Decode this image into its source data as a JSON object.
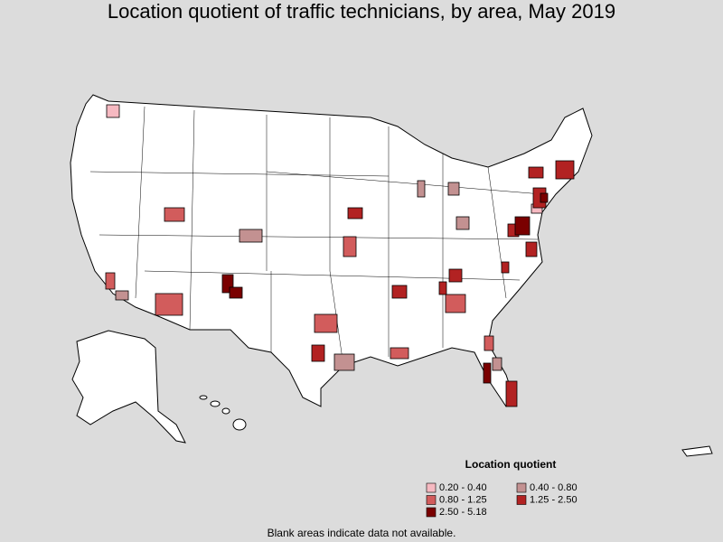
{
  "title": "Location quotient of traffic technicians, by area, May 2019",
  "legend": {
    "title": "Location quotient",
    "items": [
      {
        "label": "0.20 - 0.40",
        "color": "#f6b9c1"
      },
      {
        "label": "0.40 - 0.80",
        "color": "#c39191"
      },
      {
        "label": "0.80 - 1.25",
        "color": "#d25c5c"
      },
      {
        "label": "1.25 - 2.50",
        "color": "#b22222"
      },
      {
        "label": "2.50 - 5.18",
        "color": "#7a0000"
      }
    ]
  },
  "footnote": "Blank areas indicate data not available."
}
